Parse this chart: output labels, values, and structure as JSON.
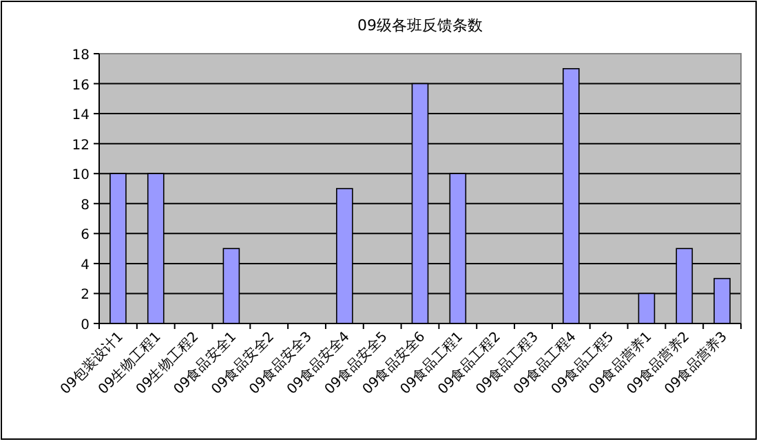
{
  "chart_data": {
    "type": "bar",
    "title": "09级各班反馈条数",
    "categories": [
      "09包装设计1",
      "09生物工程1",
      "09生物工程2",
      "09食品安全1",
      "09食品安全2",
      "09食品安全3",
      "09食品安全4",
      "09食品安全5",
      "09食品安全6",
      "09食品工程1",
      "09食品工程2",
      "09食品工程3",
      "09食品工程4",
      "09食品工程5",
      "09食品营养1",
      "09食品营养2",
      "09食品营养3"
    ],
    "values": [
      10,
      10,
      0,
      5,
      0,
      0,
      9,
      0,
      16,
      10,
      0,
      0,
      17,
      0,
      2,
      5,
      3
    ],
    "color": "#9999ff",
    "ylim": [
      0,
      18
    ],
    "yticks": [
      0,
      2,
      4,
      6,
      8,
      10,
      12,
      14,
      16,
      18
    ],
    "grid": "y"
  }
}
